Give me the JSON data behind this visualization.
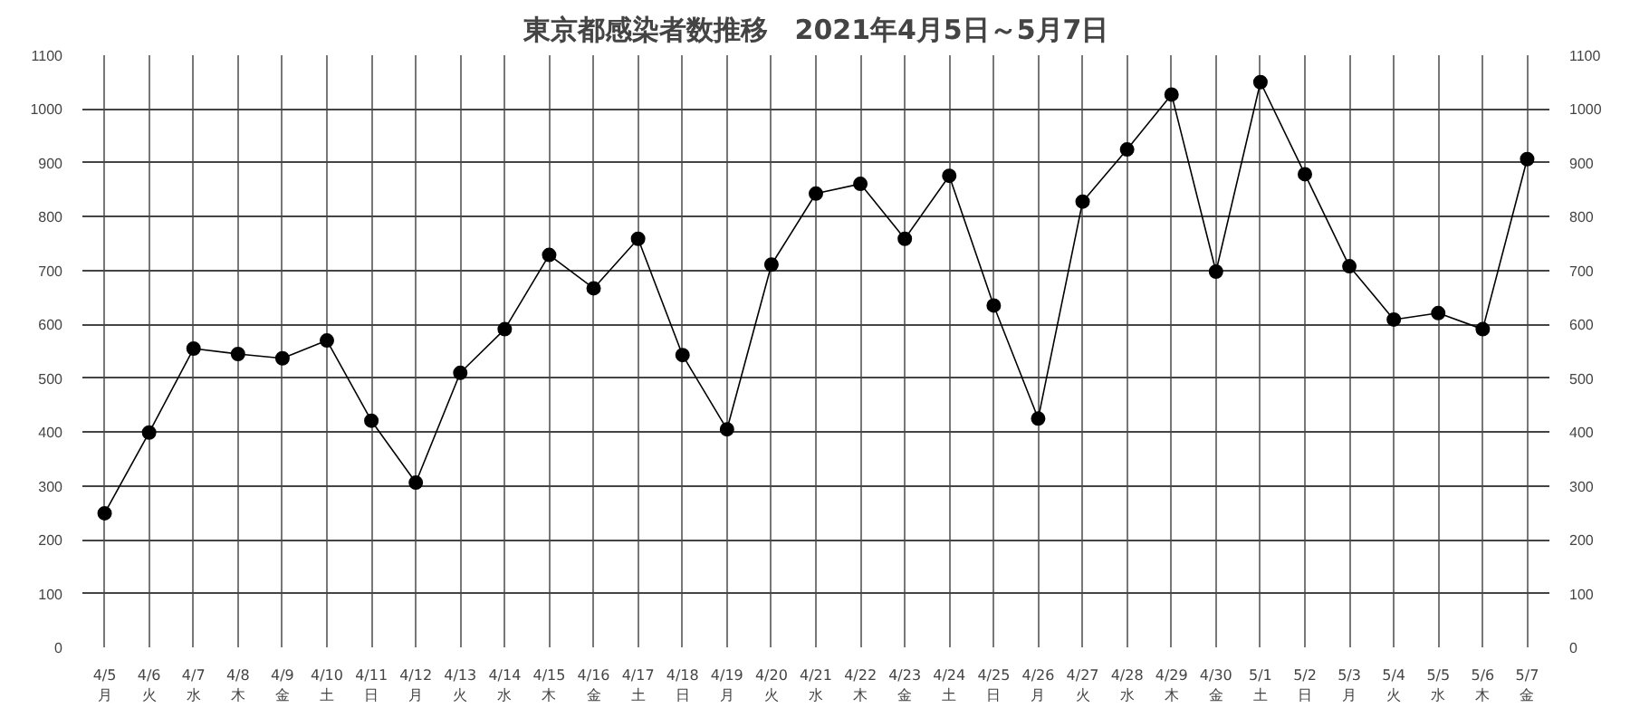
{
  "chart_data": {
    "type": "line",
    "title": "東京都感染者数推移　2021年4月5日～5月7日",
    "categories": [
      "4/5\n月",
      "4/6\n火",
      "4/7\n水",
      "4/8\n木",
      "4/9\n金",
      "4/10\n土",
      "4/11\n日",
      "4/12\n月",
      "4/13\n火",
      "4/14\n水",
      "4/15\n木",
      "4/16\n金",
      "4/17\n土",
      "4/18\n日",
      "4/19\n月",
      "4/20\n火",
      "4/21\n水",
      "4/22\n木",
      "4/23\n金",
      "4/24\n土",
      "4/25\n日",
      "4/26\n月",
      "4/27\n火",
      "4/28\n水",
      "4/29\n木",
      "4/30\n金",
      "5/1\n土",
      "5/2\n日",
      "5/3\n月",
      "5/4\n火",
      "5/5\n水",
      "5/6\n木",
      "5/7\n金"
    ],
    "series": [
      {
        "color": "#000000",
        "values": [
          249,
          399,
          555,
          545,
          537,
          570,
          421,
          306,
          510,
          591,
          729,
          667,
          759,
          543,
          405,
          711,
          843,
          861,
          759,
          876,
          635,
          425,
          828,
          925,
          1027,
          698,
          1050,
          879,
          708,
          609,
          621,
          591,
          907
        ]
      }
    ],
    "ylim": [
      0,
      1100
    ],
    "yticks": [
      0,
      100,
      200,
      300,
      400,
      500,
      600,
      700,
      800,
      900,
      1000,
      1100
    ],
    "y2lim": [
      0,
      1100
    ],
    "y2ticks": [
      0,
      100,
      200,
      300,
      400,
      500,
      600,
      700,
      800,
      900,
      1000,
      1100
    ],
    "grid": true,
    "marker": "circle",
    "line_style": "solid"
  }
}
